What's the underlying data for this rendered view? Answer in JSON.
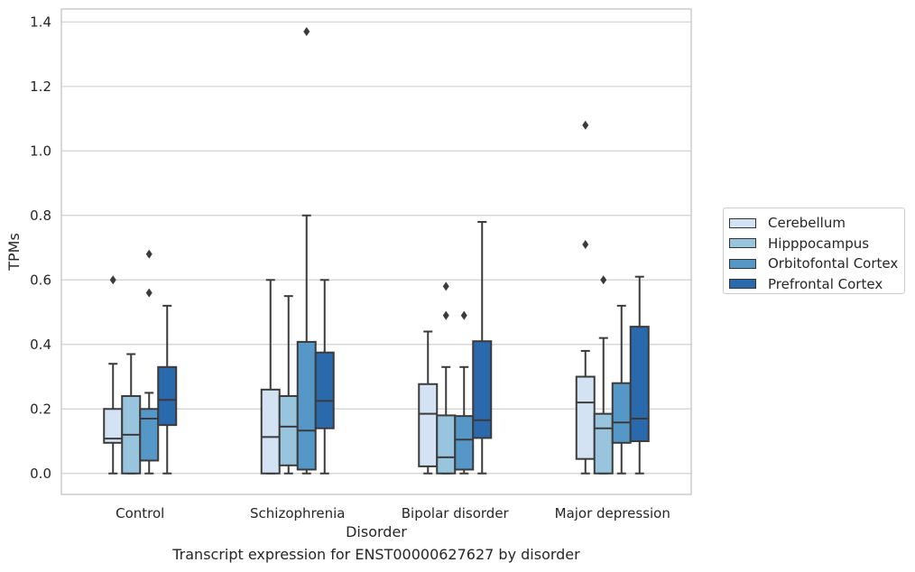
{
  "caption": "Transcript expression for ENST00000627627 by disorder",
  "chart_data": {
    "type": "box",
    "xlabel": "Disorder",
    "ylabel": "TPMs",
    "ylim": [
      -0.065,
      1.44
    ],
    "yticks": [
      "0.0",
      "0.2",
      "0.4",
      "0.6",
      "0.8",
      "1.0",
      "1.2",
      "1.4"
    ],
    "grid": "horizontal",
    "legend_position": "right",
    "categories": [
      "Control",
      "Schizophrenia",
      "Bipolar disorder",
      "Major depression"
    ],
    "series": [
      {
        "name": "Cerebellum",
        "color": "#d3e3f3",
        "boxes": [
          {
            "whisker_low": 0.0,
            "q1": 0.095,
            "median": 0.108,
            "q3": 0.2,
            "whisker_high": 0.34,
            "outliers": [
              0.6
            ]
          },
          {
            "whisker_low": 0.0,
            "q1": 0.0,
            "median": 0.113,
            "q3": 0.26,
            "whisker_high": 0.6,
            "outliers": []
          },
          {
            "whisker_low": 0.0,
            "q1": 0.022,
            "median": 0.185,
            "q3": 0.277,
            "whisker_high": 0.44,
            "outliers": []
          },
          {
            "whisker_low": 0.0,
            "q1": 0.045,
            "median": 0.22,
            "q3": 0.3,
            "whisker_high": 0.38,
            "outliers": [
              0.71,
              1.08
            ]
          }
        ]
      },
      {
        "name": "Hipppocampus",
        "color": "#99c4de",
        "boxes": [
          {
            "whisker_low": 0.0,
            "q1": 0.0,
            "median": 0.12,
            "q3": 0.24,
            "whisker_high": 0.37,
            "outliers": []
          },
          {
            "whisker_low": 0.0,
            "q1": 0.025,
            "median": 0.145,
            "q3": 0.24,
            "whisker_high": 0.55,
            "outliers": []
          },
          {
            "whisker_low": 0.0,
            "q1": 0.0,
            "median": 0.05,
            "q3": 0.18,
            "whisker_high": 0.33,
            "outliers": [
              0.49,
              0.58
            ]
          },
          {
            "whisker_low": 0.0,
            "q1": 0.0,
            "median": 0.14,
            "q3": 0.185,
            "whisker_high": 0.42,
            "outliers": [
              0.6
            ]
          }
        ]
      },
      {
        "name": "Orbitofontal Cortex",
        "color": "#5597c6",
        "boxes": [
          {
            "whisker_low": 0.0,
            "q1": 0.04,
            "median": 0.17,
            "q3": 0.2,
            "whisker_high": 0.25,
            "outliers": [
              0.56,
              0.68
            ]
          },
          {
            "whisker_low": 0.0,
            "q1": 0.012,
            "median": 0.133,
            "q3": 0.408,
            "whisker_high": 0.8,
            "outliers": [
              1.37
            ]
          },
          {
            "whisker_low": 0.0,
            "q1": 0.012,
            "median": 0.105,
            "q3": 0.178,
            "whisker_high": 0.33,
            "outliers": [
              0.49
            ]
          },
          {
            "whisker_low": 0.0,
            "q1": 0.095,
            "median": 0.158,
            "q3": 0.28,
            "whisker_high": 0.52,
            "outliers": []
          }
        ]
      },
      {
        "name": "Prefrontal Cortex",
        "color": "#2a6aac",
        "boxes": [
          {
            "whisker_low": 0.0,
            "q1": 0.15,
            "median": 0.228,
            "q3": 0.33,
            "whisker_high": 0.52,
            "outliers": []
          },
          {
            "whisker_low": 0.0,
            "q1": 0.14,
            "median": 0.225,
            "q3": 0.375,
            "whisker_high": 0.6,
            "outliers": []
          },
          {
            "whisker_low": 0.0,
            "q1": 0.11,
            "median": 0.165,
            "q3": 0.41,
            "whisker_high": 0.78,
            "outliers": []
          },
          {
            "whisker_low": 0.0,
            "q1": 0.1,
            "median": 0.17,
            "q3": 0.455,
            "whisker_high": 0.61,
            "outliers": []
          }
        ]
      }
    ]
  }
}
